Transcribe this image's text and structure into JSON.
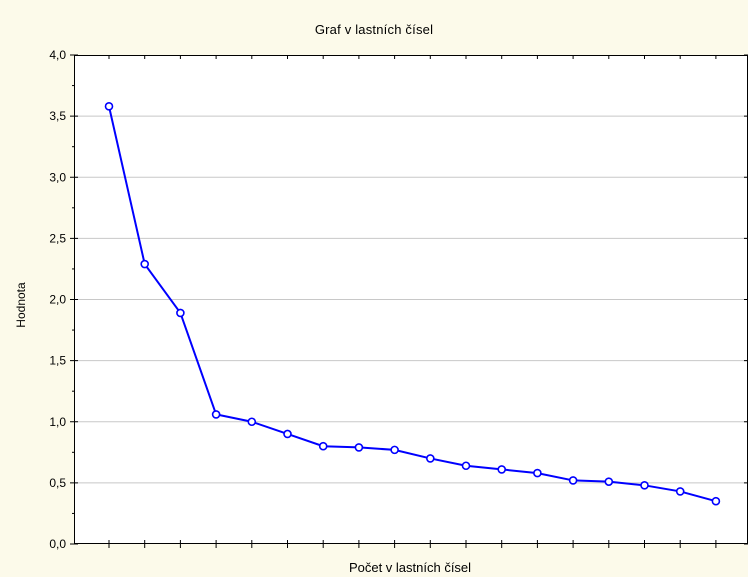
{
  "chart_data": {
    "type": "line",
    "title": "Graf v lastních čísel",
    "xlabel": "Počet v lastních čísel",
    "ylabel": "Hodnota",
    "x": [
      1,
      2,
      3,
      4,
      5,
      6,
      7,
      8,
      9,
      10,
      11,
      12,
      13,
      14,
      15,
      16,
      17,
      18
    ],
    "values": [
      3.58,
      2.29,
      1.89,
      1.06,
      1.0,
      0.9,
      0.8,
      0.79,
      0.77,
      0.7,
      0.64,
      0.61,
      0.58,
      0.52,
      0.51,
      0.48,
      0.43,
      0.35
    ],
    "ylim": [
      0,
      4
    ],
    "yticks": [
      "0,0",
      "0,5",
      "1,0",
      "1,5",
      "2,0",
      "2,5",
      "3,0",
      "3,5",
      "4,0"
    ],
    "ytick_values": [
      0,
      0.5,
      1.0,
      1.5,
      2.0,
      2.5,
      3.0,
      3.5,
      4.0
    ],
    "grid": "horizontal",
    "line_color": "#0000ff",
    "background_color": "#fcfaea",
    "plot_background_color": "#ffffff",
    "grid_color": "#c8c8c8"
  }
}
